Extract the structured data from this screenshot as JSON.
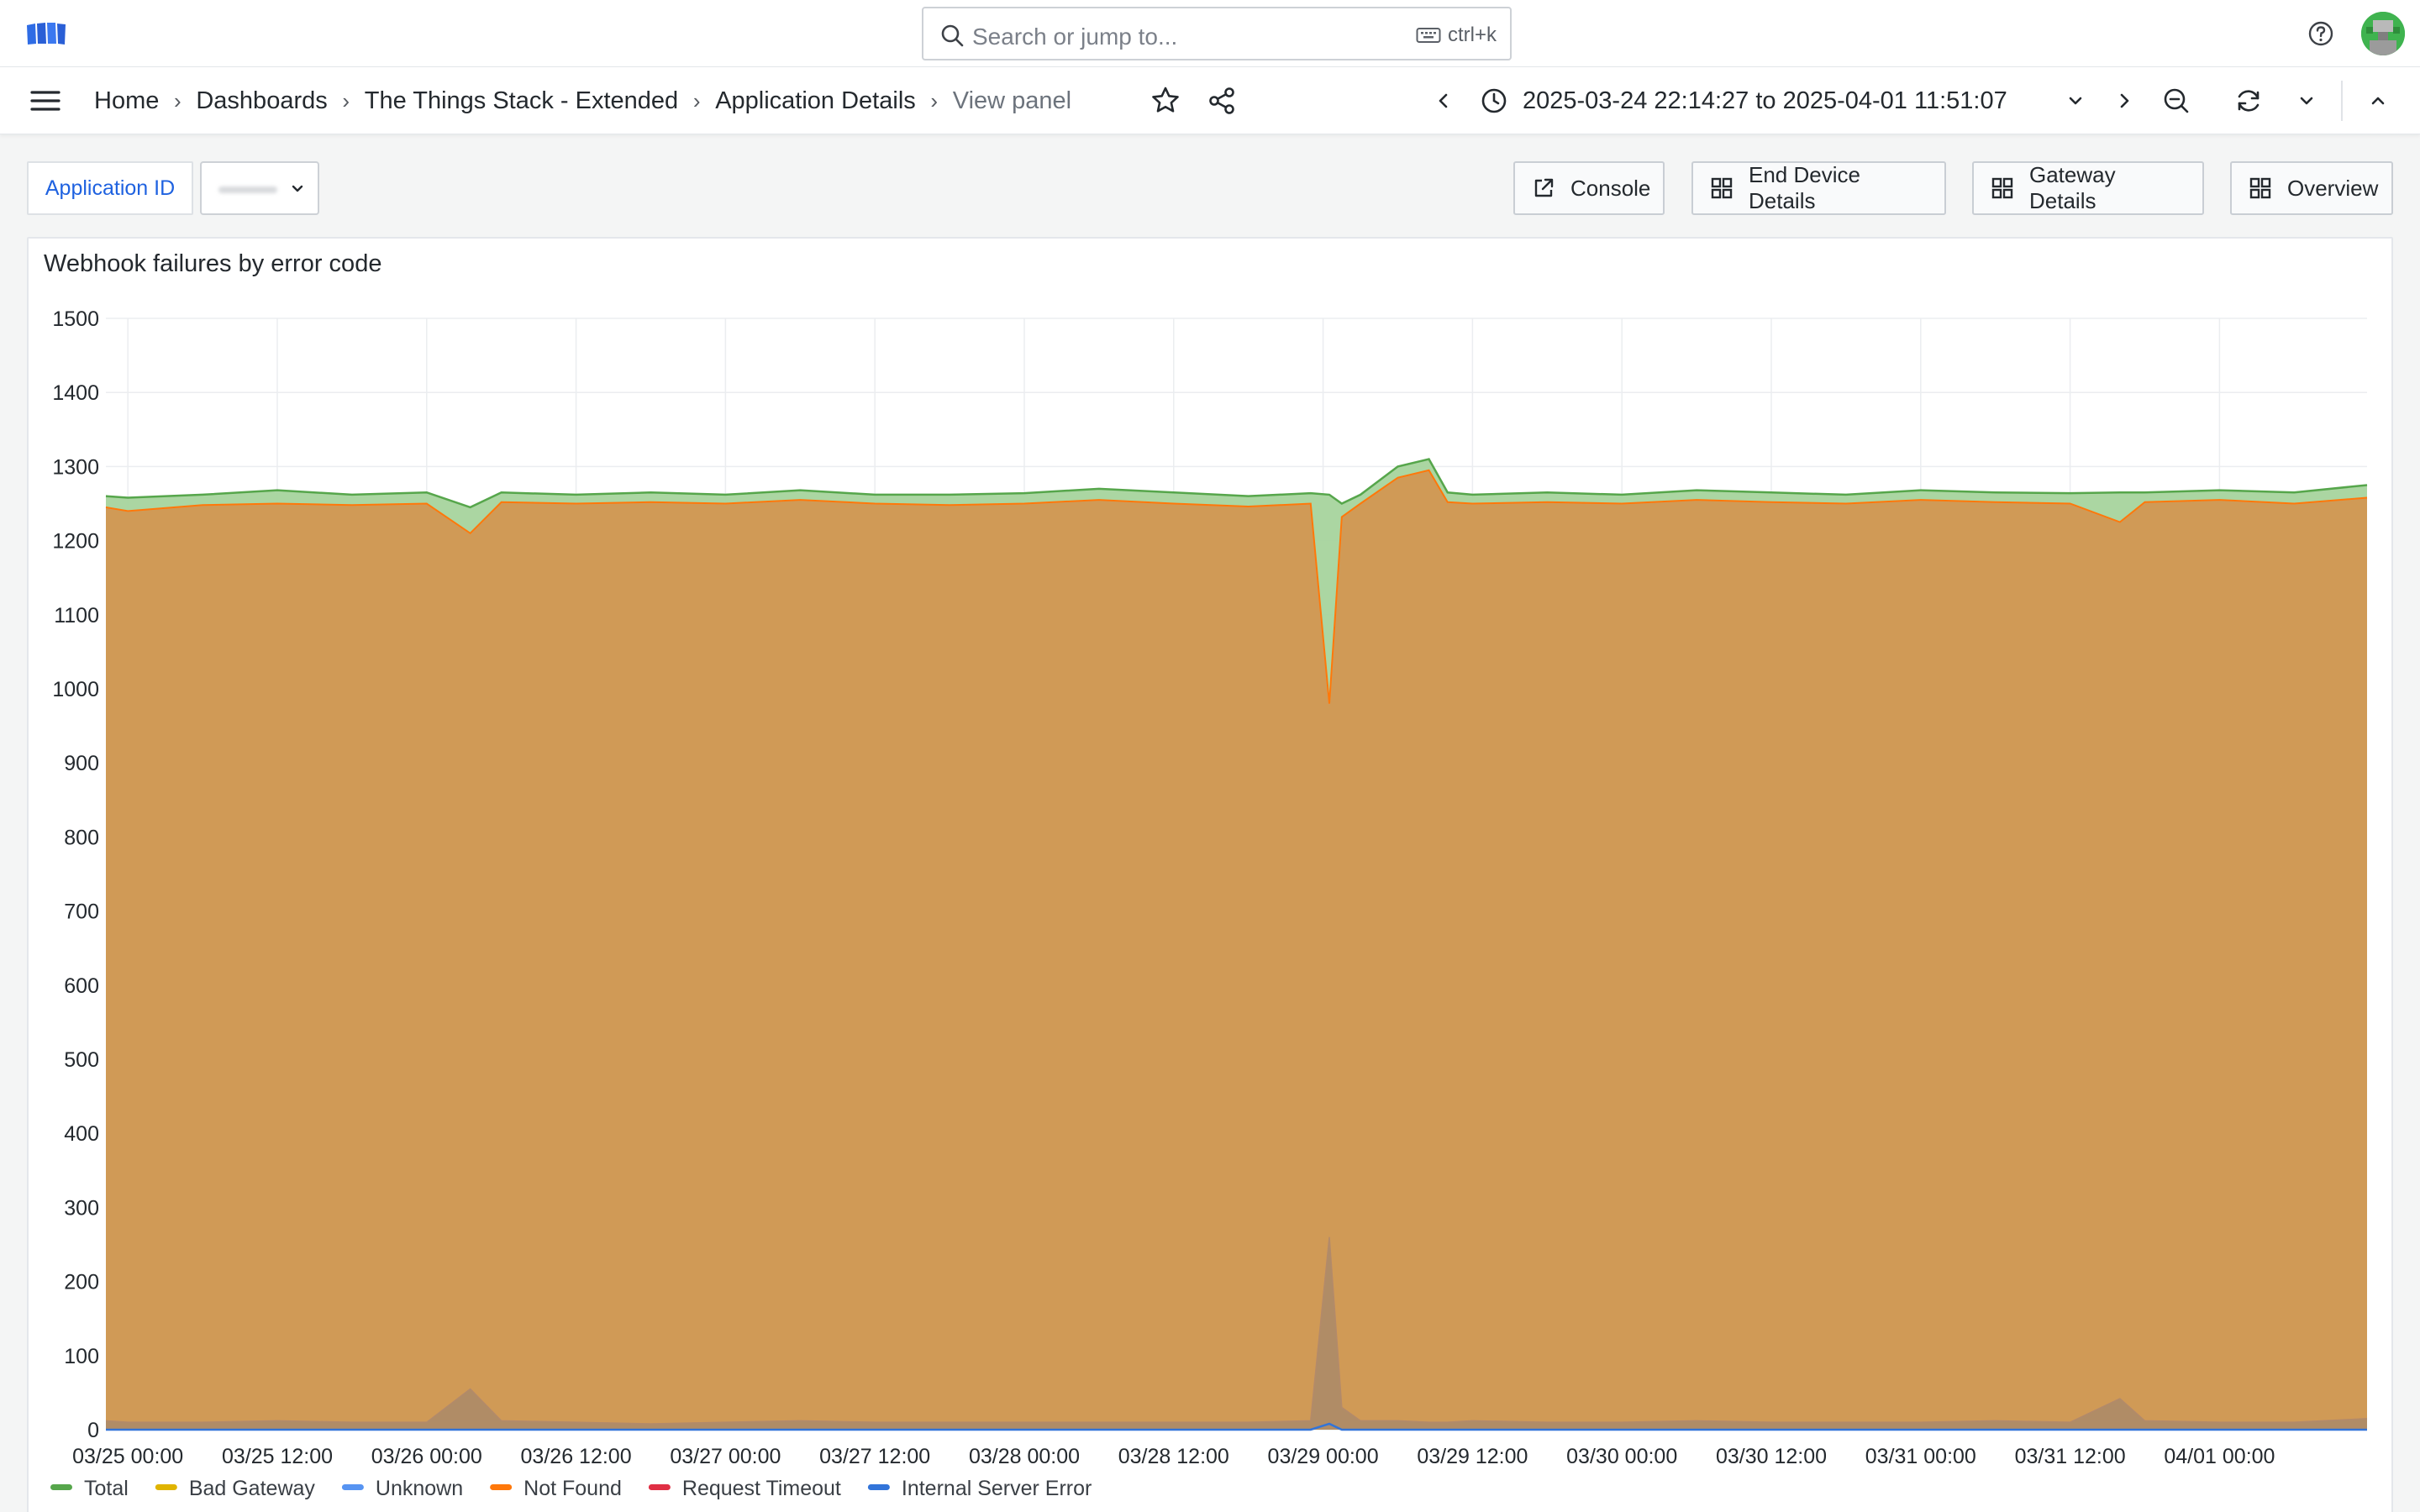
{
  "header": {
    "search_placeholder": "Search or jump to...",
    "search_shortcut": "ctrl+k"
  },
  "nav": {
    "breadcrumbs": [
      "Home",
      "Dashboards",
      "The Things Stack - Extended",
      "Application Details",
      "View panel"
    ],
    "time_range": "2025-03-24 22:14:27 to 2025-04-01 11:51:07"
  },
  "controls": {
    "variable_label": "Application ID",
    "variable_value": "",
    "links": [
      "Console",
      "End Device Details",
      "Gateway Details",
      "Overview"
    ]
  },
  "colors": {
    "total": "#56a64b",
    "total_fill": "#a6d49d",
    "bad_gateway": "#e0b400",
    "unknown": "#5794f2",
    "not_found": "#ff780a",
    "request_timeout": "#e02f44",
    "internal_server_error": "#3274d9",
    "stacked_fill": "#d09a56",
    "accent": "#1f62e0"
  },
  "panel": {
    "title": "Webhook failures by error code"
  },
  "chart_data": {
    "type": "area",
    "title": "Webhook failures by error code",
    "xlabel": "",
    "ylabel": "",
    "ylim": [
      0,
      1500
    ],
    "yticks": [
      0,
      100,
      200,
      300,
      400,
      500,
      600,
      700,
      800,
      900,
      1000,
      1100,
      1200,
      1300,
      1400,
      1500
    ],
    "xlim": [
      "03/24 22:14",
      "04/01 11:51"
    ],
    "xticks": [
      "03/25 00:00",
      "03/25 12:00",
      "03/26 00:00",
      "03/26 12:00",
      "03/27 00:00",
      "03/27 12:00",
      "03/28 00:00",
      "03/28 12:00",
      "03/29 00:00",
      "03/29 12:00",
      "03/30 00:00",
      "03/30 12:00",
      "03/31 00:00",
      "03/31 12:00",
      "04/01 00:00"
    ],
    "grid": true,
    "legend_position": "bottom",
    "x": [
      "03/24 22:14",
      "03/25 00:00",
      "03/25 06:00",
      "03/25 12:00",
      "03/25 18:00",
      "03/26 00:00",
      "03/26 03:30",
      "03/26 06:00",
      "03/26 12:00",
      "03/26 18:00",
      "03/27 00:00",
      "03/27 06:00",
      "03/27 12:00",
      "03/27 18:00",
      "03/28 00:00",
      "03/28 06:00",
      "03/28 12:00",
      "03/28 18:00",
      "03/28 23:00",
      "03/29 00:30",
      "03/29 01:30",
      "03/29 03:00",
      "03/29 06:00",
      "03/29 08:30",
      "03/29 10:00",
      "03/29 12:00",
      "03/29 18:00",
      "03/30 00:00",
      "03/30 06:00",
      "03/30 12:00",
      "03/30 18:00",
      "03/31 00:00",
      "03/31 06:00",
      "03/31 12:00",
      "03/31 16:00",
      "03/31 18:00",
      "04/01 00:00",
      "04/01 06:00",
      "04/01 11:51"
    ],
    "series": [
      {
        "name": "Total",
        "values": [
          1260,
          1258,
          1262,
          1268,
          1262,
          1265,
          1245,
          1265,
          1262,
          1265,
          1262,
          1268,
          1262,
          1262,
          1264,
          1270,
          1265,
          1260,
          1264,
          1262,
          1250,
          1262,
          1300,
          1310,
          1265,
          1262,
          1265,
          1262,
          1268,
          1265,
          1262,
          1268,
          1265,
          1264,
          1265,
          1265,
          1268,
          1265,
          1275
        ]
      },
      {
        "name": "Bad Gateway",
        "values": [
          12,
          10,
          10,
          12,
          10,
          10,
          55,
          12,
          10,
          8,
          10,
          12,
          10,
          10,
          10,
          10,
          10,
          10,
          12,
          260,
          30,
          12,
          12,
          10,
          10,
          12,
          10,
          10,
          12,
          10,
          10,
          10,
          12,
          10,
          42,
          12,
          10,
          10,
          15
        ]
      },
      {
        "name": "Unknown",
        "values": [
          0,
          0,
          0,
          0,
          0,
          0,
          0,
          0,
          0,
          0,
          0,
          0,
          0,
          0,
          0,
          0,
          0,
          0,
          0,
          0,
          0,
          0,
          0,
          0,
          0,
          0,
          0,
          0,
          0,
          0,
          0,
          0,
          0,
          0,
          0,
          0,
          0,
          0,
          0
        ]
      },
      {
        "name": "Not Found",
        "values": [
          1245,
          1240,
          1248,
          1250,
          1248,
          1250,
          1210,
          1252,
          1250,
          1252,
          1250,
          1255,
          1250,
          1248,
          1250,
          1255,
          1250,
          1246,
          1250,
          980,
          1232,
          1250,
          1285,
          1295,
          1252,
          1250,
          1252,
          1250,
          1255,
          1252,
          1250,
          1255,
          1252,
          1250,
          1225,
          1252,
          1255,
          1250,
          1258
        ]
      },
      {
        "name": "Request Timeout",
        "values": [
          0,
          0,
          0,
          0,
          0,
          0,
          0,
          0,
          0,
          0,
          0,
          0,
          0,
          0,
          0,
          0,
          0,
          0,
          0,
          0,
          0,
          0,
          0,
          0,
          0,
          0,
          0,
          0,
          0,
          0,
          0,
          0,
          0,
          0,
          0,
          0,
          0,
          0,
          0
        ]
      },
      {
        "name": "Internal Server Error",
        "values": [
          0,
          0,
          0,
          0,
          0,
          0,
          0,
          0,
          0,
          0,
          0,
          0,
          0,
          0,
          0,
          0,
          0,
          0,
          0,
          8,
          0,
          0,
          0,
          0,
          0,
          0,
          0,
          0,
          0,
          0,
          0,
          0,
          0,
          0,
          0,
          0,
          0,
          0,
          0
        ]
      }
    ]
  }
}
